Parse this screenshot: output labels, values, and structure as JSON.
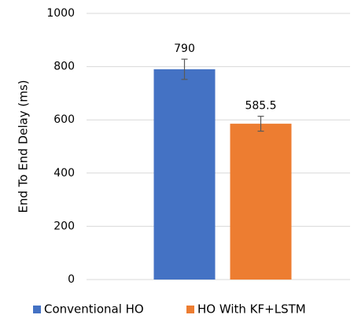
{
  "chart_data": {
    "type": "bar",
    "y_label": "End To End Delay (ms)",
    "categories": [
      null
    ],
    "series": [
      {
        "name": "Conventional HO",
        "color": "#4472c4",
        "values": [
          790
        ],
        "errors": [
          38
        ]
      },
      {
        "name": "HO With KF+LSTM",
        "color": "#ed7d31",
        "values": [
          585.5
        ],
        "errors": [
          28
        ]
      }
    ],
    "ylim": [
      0,
      1000
    ],
    "yticks": [
      0,
      200,
      400,
      600,
      800,
      1000
    ],
    "grid": true,
    "legend": "bottom"
  }
}
